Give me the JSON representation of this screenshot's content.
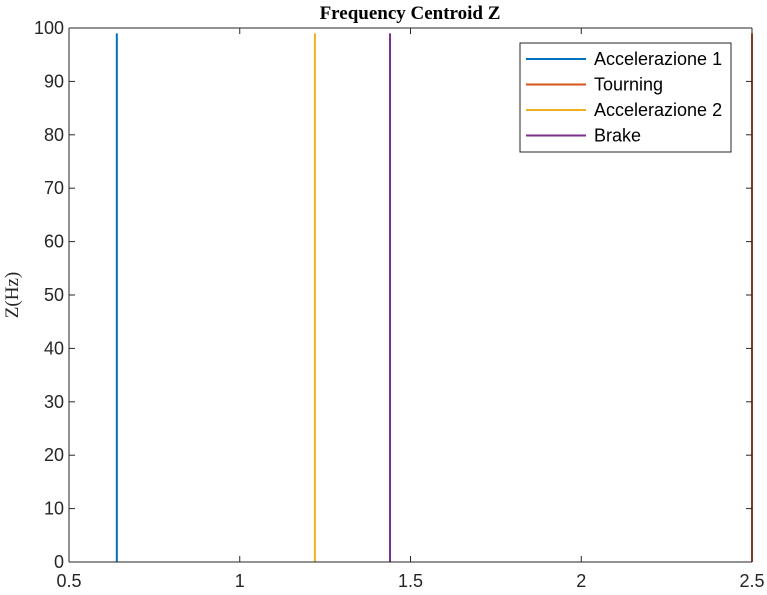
{
  "chart_data": {
    "type": "line",
    "title": "Frequency Centroid Z",
    "xlabel": "",
    "ylabel": "Z(Hz)",
    "xlim": [
      0.5,
      2.5
    ],
    "ylim": [
      0,
      100
    ],
    "xticks": [
      0.5,
      1,
      1.5,
      2,
      2.5
    ],
    "xtick_labels": [
      "0.5",
      "1",
      "1.5",
      "2",
      "2.5"
    ],
    "yticks": [
      0,
      10,
      20,
      30,
      40,
      50,
      60,
      70,
      80,
      90,
      100
    ],
    "ytick_labels": [
      "0",
      "10",
      "20",
      "30",
      "40",
      "50",
      "60",
      "70",
      "80",
      "90",
      "100"
    ],
    "grid": false,
    "legend_position": "top-right",
    "series": [
      {
        "name": "Accelerazione 1",
        "color": "#0072BD",
        "x": [
          0.64,
          0.64
        ],
        "y": [
          0,
          99
        ]
      },
      {
        "name": "Tourning",
        "color": "#D95319",
        "x": [
          2.5,
          2.5
        ],
        "y": [
          0,
          99
        ]
      },
      {
        "name": "Accelerazione 2",
        "color": "#EDB120",
        "x": [
          1.22,
          1.22
        ],
        "y": [
          0,
          99
        ]
      },
      {
        "name": "Brake",
        "color": "#7E2F8E",
        "x": [
          1.44,
          1.44
        ],
        "y": [
          0,
          99
        ]
      }
    ]
  }
}
